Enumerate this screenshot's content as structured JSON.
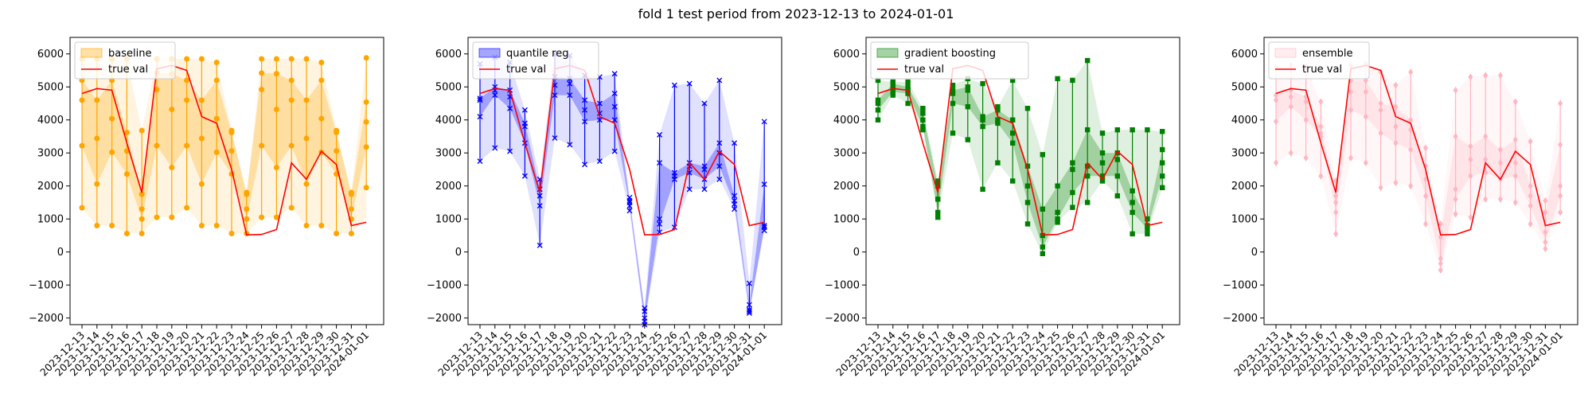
{
  "figure": {
    "suptitle": "fold 1 test period from 2023-12-13 to 2024-01-01"
  },
  "chart_data": [
    {
      "type": "line",
      "name": "baseline",
      "title": "",
      "xlabel": "",
      "ylabel": "",
      "ylim": [
        -2200,
        6500
      ],
      "yticks": [
        -2000,
        -1000,
        0,
        1000,
        2000,
        3000,
        4000,
        5000,
        6000
      ],
      "legend_placement": "upper-left",
      "color": "#FFA500",
      "legend": [
        "baseline",
        "true val"
      ],
      "x": [
        "2023-12-13",
        "2023-12-14",
        "2023-12-15",
        "2023-12-16",
        "2023-12-17",
        "2023-12-18",
        "2023-12-19",
        "2023-12-20",
        "2023-12-21",
        "2023-12-22",
        "2023-12-23",
        "2023-12-24",
        "2023-12-25",
        "2023-12-26",
        "2023-12-27",
        "2023-12-28",
        "2023-12-29",
        "2023-12-30",
        "2023-12-31",
        "2024-01-01"
      ],
      "true_val": [
        4800,
        4950,
        4900,
        3300,
        1800,
        5550,
        5650,
        5500,
        4100,
        3900,
        2500,
        520,
        530,
        680,
        2700,
        2200,
        3050,
        2650,
        800,
        900
      ],
      "band_lower": [
        1340,
        800,
        800,
        560,
        560,
        1050,
        1050,
        1340,
        800,
        800,
        560,
        560,
        1050,
        1050,
        1340,
        800,
        800,
        560,
        560,
        1050
      ],
      "band_upper": [
        5850,
        5850,
        5840,
        5850,
        3680,
        5850,
        5850,
        5850,
        5850,
        5740,
        3680,
        1800,
        5850,
        5850,
        5850,
        5850,
        5740,
        3680,
        1800,
        5850
      ],
      "quantile_points": [
        [
          1340,
          3220,
          4600,
          5200,
          5850
        ],
        [
          800,
          2060,
          3440,
          4600,
          5850
        ],
        [
          800,
          3020,
          4040,
          5200,
          5840
        ],
        [
          560,
          2360,
          3060,
          3620,
          5850
        ],
        [
          560,
          1000,
          1300,
          1750,
          3680
        ],
        [
          1050,
          3220,
          4920,
          5420,
          5850
        ],
        [
          1050,
          2560,
          4320,
          5400,
          5850
        ],
        [
          1340,
          3220,
          4600,
          5200,
          5850
        ],
        [
          800,
          2060,
          3440,
          4600,
          5850
        ],
        [
          800,
          3020,
          4040,
          5200,
          5740
        ],
        [
          560,
          2360,
          3060,
          3620,
          3680
        ],
        [
          560,
          1000,
          1300,
          1750,
          1800
        ],
        [
          1050,
          3220,
          4920,
          5420,
          5850
        ],
        [
          1050,
          2560,
          4320,
          5400,
          5850
        ],
        [
          1340,
          3220,
          4600,
          5200,
          5850
        ],
        [
          800,
          2060,
          3440,
          4600,
          5850
        ],
        [
          800,
          3020,
          4040,
          5200,
          5740
        ],
        [
          560,
          2360,
          3060,
          3620,
          3680
        ],
        [
          560,
          1000,
          1300,
          1750,
          1800
        ],
        [
          1950,
          3180,
          3940,
          4540,
          5880
        ]
      ]
    },
    {
      "type": "line",
      "name": "quantile reg",
      "title": "",
      "xlabel": "",
      "ylabel": "",
      "ylim": [
        -2200,
        6500
      ],
      "yticks": [
        -2000,
        -1000,
        0,
        1000,
        2000,
        3000,
        4000,
        5000,
        6000
      ],
      "legend_placement": "upper-left",
      "color": "#0000FF",
      "legend": [
        "quantile reg",
        "true val"
      ],
      "x": [
        "2023-12-13",
        "2023-12-14",
        "2023-12-15",
        "2023-12-16",
        "2023-12-17",
        "2023-12-18",
        "2023-12-19",
        "2023-12-20",
        "2023-12-21",
        "2023-12-22",
        "2023-12-23",
        "2023-12-24",
        "2023-12-25",
        "2023-12-26",
        "2023-12-27",
        "2023-12-28",
        "2023-12-29",
        "2023-12-30",
        "2023-12-31",
        "2024-01-01"
      ],
      "true_val": [
        4800,
        4950,
        4900,
        3300,
        1800,
        5550,
        5650,
        5500,
        4100,
        3900,
        2500,
        520,
        530,
        680,
        2700,
        2200,
        3050,
        2650,
        800,
        900
      ],
      "band_lower": [
        2750,
        3150,
        3050,
        2300,
        200,
        3450,
        3250,
        2650,
        2750,
        3050,
        1250,
        -2200,
        600,
        750,
        1900,
        1900,
        2200,
        1300,
        -1850,
        650
      ],
      "band_upper": [
        5700,
        5900,
        5750,
        4300,
        2200,
        6000,
        5950,
        5350,
        5300,
        5400,
        1650,
        -1700,
        3550,
        5050,
        5100,
        4500,
        5200,
        3300,
        -950,
        3950
      ],
      "quantile_points": [
        [
          2750,
          4100,
          4600,
          4650,
          5700
        ],
        [
          3150,
          4750,
          4900,
          5000,
          5900
        ],
        [
          3050,
          4350,
          4700,
          4900,
          5750
        ],
        [
          2300,
          3300,
          3800,
          3900,
          4300
        ],
        [
          200,
          1400,
          1700,
          1900,
          2200
        ],
        [
          3450,
          4750,
          5050,
          5300,
          6000
        ],
        [
          3250,
          4750,
          5100,
          5250,
          5950
        ],
        [
          2650,
          3950,
          4300,
          4600,
          5350
        ],
        [
          2750,
          4000,
          4200,
          4500,
          5300
        ],
        [
          3050,
          4000,
          4400,
          4800,
          5400
        ],
        [
          1250,
          1400,
          1500,
          1550,
          1650
        ],
        [
          -2200,
          -2100,
          -2000,
          -1800,
          -1700
        ],
        [
          600,
          850,
          1000,
          2700,
          3550
        ],
        [
          750,
          2200,
          2300,
          2400,
          5050
        ],
        [
          1900,
          2400,
          2600,
          2700,
          5100
        ],
        [
          1900,
          2200,
          2500,
          2600,
          4500
        ],
        [
          2200,
          2600,
          3000,
          3300,
          5200
        ],
        [
          1300,
          1450,
          1550,
          1700,
          3300
        ],
        [
          -1850,
          -1800,
          -1750,
          -1600,
          -950
        ],
        [
          650,
          750,
          800,
          2050,
          3950
        ]
      ]
    },
    {
      "type": "line",
      "name": "gradient boosting",
      "title": "",
      "xlabel": "",
      "ylabel": "",
      "ylim": [
        -2200,
        6500
      ],
      "yticks": [
        -2000,
        -1000,
        0,
        1000,
        2000,
        3000,
        4000,
        5000,
        6000
      ],
      "legend_placement": "upper-left",
      "color": "#008000",
      "legend": [
        "gradient boosting",
        "true val"
      ],
      "x": [
        "2023-12-13",
        "2023-12-14",
        "2023-12-15",
        "2023-12-16",
        "2023-12-17",
        "2023-12-18",
        "2023-12-19",
        "2023-12-20",
        "2023-12-21",
        "2023-12-22",
        "2023-12-23",
        "2023-12-24",
        "2023-12-25",
        "2023-12-26",
        "2023-12-27",
        "2023-12-28",
        "2023-12-29",
        "2023-12-30",
        "2023-12-31",
        "2024-01-01"
      ],
      "true_val": [
        4800,
        4950,
        4900,
        3300,
        1800,
        5550,
        5650,
        5500,
        4100,
        3900,
        2500,
        520,
        530,
        680,
        2700,
        2200,
        3050,
        2650,
        800,
        900
      ],
      "band_lower": [
        4000,
        4750,
        4500,
        3700,
        1050,
        3600,
        3400,
        1900,
        2700,
        2150,
        850,
        -50,
        900,
        1350,
        1500,
        2150,
        1700,
        550,
        550,
        1950
      ],
      "band_upper": [
        5200,
        5150,
        5150,
        4350,
        2150,
        5050,
        5250,
        5100,
        4400,
        5200,
        4350,
        2950,
        5250,
        5200,
        5800,
        3600,
        3700,
        3700,
        3700,
        3650
      ],
      "quantile_points": [
        [
          4000,
          4300,
          4500,
          4600,
          5200
        ],
        [
          4750,
          4850,
          5000,
          5100,
          5150
        ],
        [
          4500,
          4800,
          4900,
          5000,
          5150
        ],
        [
          3700,
          3800,
          4000,
          4200,
          4350
        ],
        [
          1050,
          1200,
          1600,
          2000,
          2150
        ],
        [
          3600,
          4500,
          4800,
          4900,
          5050
        ],
        [
          3400,
          4400,
          4900,
          5000,
          5250
        ],
        [
          1900,
          3800,
          4000,
          4100,
          5100
        ],
        [
          2700,
          3900,
          4000,
          4300,
          4400
        ],
        [
          2150,
          3300,
          3600,
          4000,
          5200
        ],
        [
          850,
          1500,
          2000,
          2600,
          4350
        ],
        [
          -50,
          150,
          500,
          1300,
          2950
        ],
        [
          900,
          1000,
          1200,
          2000,
          5250
        ],
        [
          1350,
          1800,
          2500,
          2700,
          5200
        ],
        [
          1500,
          2300,
          2600,
          3700,
          5800
        ],
        [
          2150,
          2300,
          2700,
          3000,
          3600
        ],
        [
          1700,
          2300,
          2800,
          3000,
          3700
        ],
        [
          550,
          1200,
          1500,
          1850,
          3700
        ],
        [
          550,
          700,
          800,
          1000,
          3700
        ],
        [
          1950,
          2300,
          2700,
          3100,
          3650
        ]
      ]
    },
    {
      "type": "line",
      "name": "ensemble",
      "title": "",
      "xlabel": "",
      "ylabel": "",
      "ylim": [
        -2200,
        6500
      ],
      "yticks": [
        -2000,
        -1000,
        0,
        1000,
        2000,
        3000,
        4000,
        5000,
        6000
      ],
      "legend_placement": "upper-left",
      "color": "#FFB6C1",
      "legend": [
        "ensemble",
        "true val"
      ],
      "x": [
        "2023-12-13",
        "2023-12-14",
        "2023-12-15",
        "2023-12-16",
        "2023-12-17",
        "2023-12-18",
        "2023-12-19",
        "2023-12-20",
        "2023-12-21",
        "2023-12-22",
        "2023-12-23",
        "2023-12-24",
        "2023-12-25",
        "2023-12-26",
        "2023-12-27",
        "2023-12-28",
        "2023-12-29",
        "2023-12-30",
        "2023-12-31",
        "2024-01-01"
      ],
      "true_val": [
        4800,
        4950,
        4900,
        3300,
        1800,
        5550,
        5650,
        5500,
        4100,
        3900,
        2500,
        520,
        530,
        680,
        2700,
        2200,
        3050,
        2650,
        800,
        900
      ],
      "band_lower": [
        2700,
        3000,
        2850,
        2300,
        550,
        2850,
        2700,
        1950,
        2100,
        2000,
        850,
        -550,
        1150,
        1050,
        1600,
        1600,
        1500,
        850,
        100,
        1200
      ],
      "band_upper": [
        5600,
        5650,
        5600,
        4550,
        2150,
        5650,
        5700,
        5450,
        5050,
        5450,
        3150,
        850,
        4900,
        5300,
        5350,
        5350,
        4550,
        3350,
        1550,
        4500
      ],
      "quantile_points": [
        [
          2700,
          3950,
          4600,
          4750,
          5600
        ],
        [
          3000,
          4400,
          4700,
          4900,
          5650
        ],
        [
          2850,
          4000,
          4550,
          4700,
          5600
        ],
        [
          2300,
          3500,
          3600,
          3800,
          4550
        ],
        [
          550,
          1200,
          1500,
          1700,
          2150
        ],
        [
          2850,
          4300,
          4850,
          5200,
          5650
        ],
        [
          2700,
          4100,
          4850,
          5200,
          5700
        ],
        [
          1950,
          3600,
          4300,
          4500,
          5450
        ],
        [
          2100,
          3300,
          3800,
          4400,
          5050
        ],
        [
          2000,
          3100,
          3700,
          4000,
          5450
        ],
        [
          850,
          1700,
          2200,
          2600,
          3150
        ],
        [
          -550,
          -350,
          -200,
          450,
          850
        ],
        [
          1150,
          1600,
          1900,
          3500,
          4900
        ],
        [
          1050,
          2300,
          2800,
          3200,
          5300
        ],
        [
          1600,
          2400,
          2800,
          3500,
          5350
        ],
        [
          1600,
          2200,
          2700,
          3100,
          5350
        ],
        [
          1500,
          2300,
          2700,
          3400,
          4550
        ],
        [
          850,
          1400,
          1700,
          2000,
          3350
        ],
        [
          100,
          300,
          600,
          1200,
          1550
        ],
        [
          1200,
          1700,
          2000,
          3250,
          4500
        ]
      ]
    }
  ]
}
